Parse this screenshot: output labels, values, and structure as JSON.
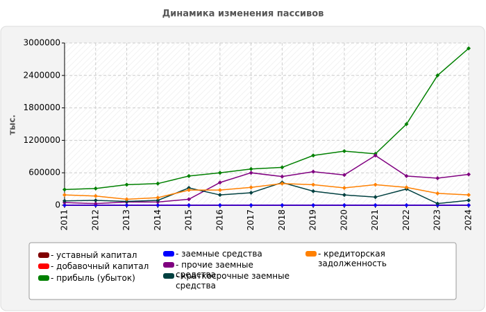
{
  "chart_data": {
    "type": "line",
    "title": "Динамика изменения пассивов",
    "ylabel": "тыс.",
    "categories": [
      "2011",
      "2012",
      "2013",
      "2014",
      "2015",
      "2016",
      "2017",
      "2018",
      "2019",
      "2020",
      "2021",
      "2022",
      "2023",
      "2024"
    ],
    "series": [
      {
        "name": "- уставный капитал",
        "color": "#800000",
        "values": [
          0,
          0,
          0,
          0,
          0,
          0,
          0,
          0,
          0,
          0,
          0,
          0,
          0,
          0
        ]
      },
      {
        "name": "- добавочный капитал",
        "color": "#ff0000",
        "values": [
          0,
          0,
          0,
          0,
          0,
          0,
          0,
          0,
          0,
          0,
          0,
          0,
          0,
          0
        ]
      },
      {
        "name": "- прибыль (убыток)",
        "color": "#008000",
        "values": [
          290000,
          310000,
          380000,
          400000,
          540000,
          600000,
          670000,
          700000,
          920000,
          1000000,
          950000,
          1500000,
          2400000,
          2900000
        ]
      },
      {
        "name": "- заемные средства",
        "color": "#0000ff",
        "values": [
          0,
          0,
          0,
          0,
          0,
          0,
          0,
          0,
          0,
          0,
          0,
          0,
          0,
          0
        ]
      },
      {
        "name": "- прочие заемные средства",
        "color": "#800080",
        "values": [
          50000,
          30000,
          60000,
          60000,
          110000,
          420000,
          600000,
          530000,
          620000,
          560000,
          920000,
          540000,
          500000,
          570000
        ]
      },
      {
        "name": "- краткосрочные заемные средства",
        "color": "#004040",
        "values": [
          80000,
          90000,
          70000,
          90000,
          320000,
          190000,
          230000,
          420000,
          260000,
          190000,
          150000,
          300000,
          30000,
          90000
        ]
      },
      {
        "name": "- кредиторская задолженность",
        "color": "#ff8000",
        "values": [
          190000,
          170000,
          110000,
          140000,
          280000,
          280000,
          330000,
          400000,
          380000,
          320000,
          380000,
          330000,
          220000,
          190000
        ]
      }
    ],
    "ylim": [
      0,
      3000000
    ],
    "yticks": [
      0,
      600000,
      1200000,
      1800000,
      2400000,
      3000000
    ],
    "grid": true
  }
}
